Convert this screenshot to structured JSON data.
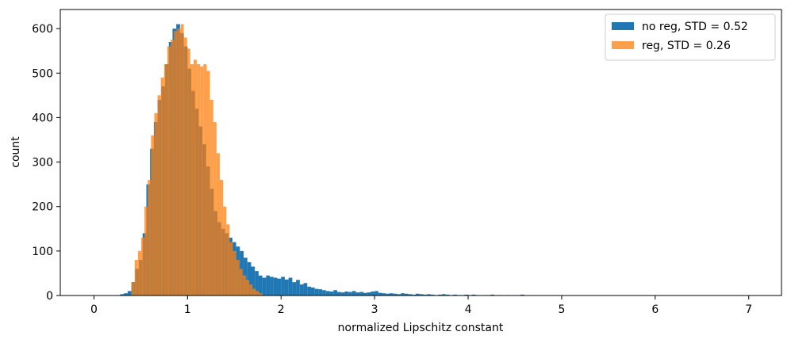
{
  "chart_data": {
    "type": "histogram",
    "xlabel": "normalized Lipschitz constant",
    "ylabel": "count",
    "xlim": [
      -0.36,
      7.35
    ],
    "ylim": [
      0,
      643
    ],
    "xticks": [
      0,
      1,
      2,
      3,
      4,
      5,
      6,
      7
    ],
    "yticks": [
      0,
      100,
      200,
      300,
      400,
      500,
      600
    ],
    "legend": "upper right",
    "series": [
      {
        "name": "no reg, STD = 0.52",
        "color": "#1f77b4",
        "opacity": 1,
        "bins": [
          0.28,
          0.32,
          0.36,
          0.4,
          0.44,
          0.48,
          0.52,
          0.56,
          0.6,
          0.64,
          0.68,
          0.72,
          0.76,
          0.8,
          0.84,
          0.88,
          0.92,
          0.96,
          1.0,
          1.04,
          1.08,
          1.12,
          1.16,
          1.2,
          1.24,
          1.28,
          1.32,
          1.36,
          1.4,
          1.44,
          1.48,
          1.52,
          1.56,
          1.6,
          1.64,
          1.68,
          1.72,
          1.76,
          1.8,
          1.84,
          1.88,
          1.92,
          1.96,
          2.0,
          2.04,
          2.08,
          2.12,
          2.16,
          2.2,
          2.24,
          2.28,
          2.32,
          2.36,
          2.4,
          2.44,
          2.48,
          2.52,
          2.56,
          2.6,
          2.64,
          2.68,
          2.72,
          2.76,
          2.8,
          2.84,
          2.88,
          2.92,
          2.96,
          3.0,
          3.04,
          3.08,
          3.12,
          3.16,
          3.2,
          3.24,
          3.28,
          3.32,
          3.36,
          3.4,
          3.44,
          3.48,
          3.52,
          3.56,
          3.6,
          3.64,
          3.68,
          3.72,
          3.76,
          3.8,
          3.84,
          3.88,
          3.92,
          3.96,
          4.0,
          4.04,
          4.08,
          4.12,
          4.16,
          4.2,
          4.24,
          4.28,
          4.32,
          4.36,
          4.4,
          4.44,
          4.48,
          4.52,
          4.56,
          4.6
        ],
        "values": [
          3,
          5,
          10,
          30,
          60,
          80,
          140,
          250,
          330,
          390,
          440,
          470,
          520,
          570,
          600,
          610,
          590,
          560,
          510,
          460,
          420,
          380,
          340,
          290,
          240,
          190,
          165,
          150,
          140,
          130,
          120,
          110,
          100,
          85,
          75,
          65,
          55,
          45,
          40,
          45,
          42,
          40,
          38,
          42,
          36,
          40,
          30,
          35,
          25,
          28,
          20,
          18,
          15,
          14,
          12,
          10,
          9,
          12,
          8,
          7,
          9,
          8,
          10,
          7,
          8,
          6,
          7,
          9,
          10,
          6,
          5,
          4,
          5,
          4,
          3,
          5,
          4,
          3,
          2,
          4,
          3,
          2,
          3,
          2,
          1,
          2,
          3,
          2,
          1,
          2,
          1,
          1,
          2,
          1,
          2,
          1,
          0,
          1,
          1,
          2,
          0,
          1,
          0,
          1,
          0,
          1,
          0,
          2
        ]
      },
      {
        "name": "reg, STD = 0.26",
        "color": "#ff7f0e",
        "opacity": 0.75,
        "bins": [
          0.4,
          0.435,
          0.47,
          0.505,
          0.54,
          0.575,
          0.61,
          0.645,
          0.68,
          0.715,
          0.75,
          0.785,
          0.82,
          0.855,
          0.89,
          0.925,
          0.96,
          0.995,
          1.03,
          1.065,
          1.1,
          1.135,
          1.17,
          1.205,
          1.24,
          1.275,
          1.31,
          1.345,
          1.38,
          1.415,
          1.45,
          1.485,
          1.52,
          1.555,
          1.59,
          1.625,
          1.66,
          1.695,
          1.73,
          1.765,
          1.8
        ],
        "values": [
          30,
          80,
          100,
          130,
          200,
          260,
          360,
          410,
          450,
          490,
          520,
          560,
          575,
          595,
          600,
          610,
          580,
          555,
          520,
          530,
          520,
          515,
          520,
          505,
          440,
          390,
          320,
          260,
          200,
          160,
          120,
          100,
          80,
          60,
          45,
          35,
          25,
          15,
          10,
          5
        ]
      }
    ]
  }
}
